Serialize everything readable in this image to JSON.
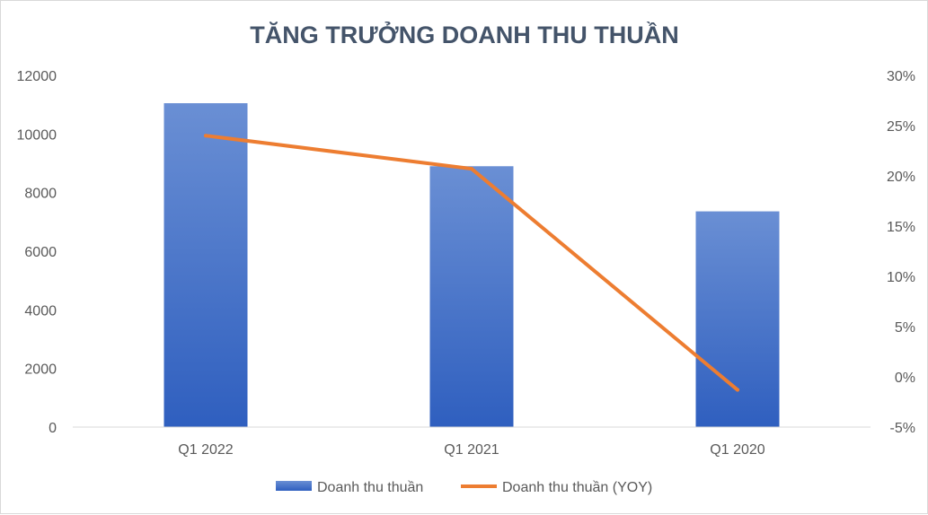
{
  "chart_data": {
    "type": "bar",
    "title": "TĂNG TRƯỞNG DOANH THU THUẦN",
    "categories": [
      "Q1 2022",
      "Q1 2021",
      "Q1 2020"
    ],
    "series": [
      {
        "name": "Doanh thu thuần",
        "type": "bar",
        "axis": "left",
        "values": [
          11050,
          8900,
          7360
        ],
        "color": "#4472c4"
      },
      {
        "name": "Doanh thu thuần (YOY)",
        "type": "line",
        "axis": "right",
        "values": [
          0.24,
          0.207,
          -0.013
        ],
        "color": "#ed7d31"
      }
    ],
    "y_left": {
      "min": 0,
      "max": 12000,
      "ticks": [
        0,
        2000,
        4000,
        6000,
        8000,
        10000,
        12000
      ],
      "tick_labels": [
        "0",
        "2000",
        "4000",
        "6000",
        "8000",
        "10000",
        "12000"
      ]
    },
    "y_right": {
      "min": -0.05,
      "max": 0.3,
      "ticks": [
        -0.05,
        0,
        0.05,
        0.1,
        0.15,
        0.2,
        0.25,
        0.3
      ],
      "tick_labels": [
        "-5%",
        "0%",
        "5%",
        "10%",
        "15%",
        "20%",
        "25%",
        "30%"
      ]
    },
    "grid": false,
    "legend": "bottom",
    "colors": {
      "title": "#44546a",
      "text": "#595959",
      "axis": "#d9d9d9",
      "bar_top": "#6a8fd4",
      "bar_bottom": "#2f5fbf"
    }
  }
}
